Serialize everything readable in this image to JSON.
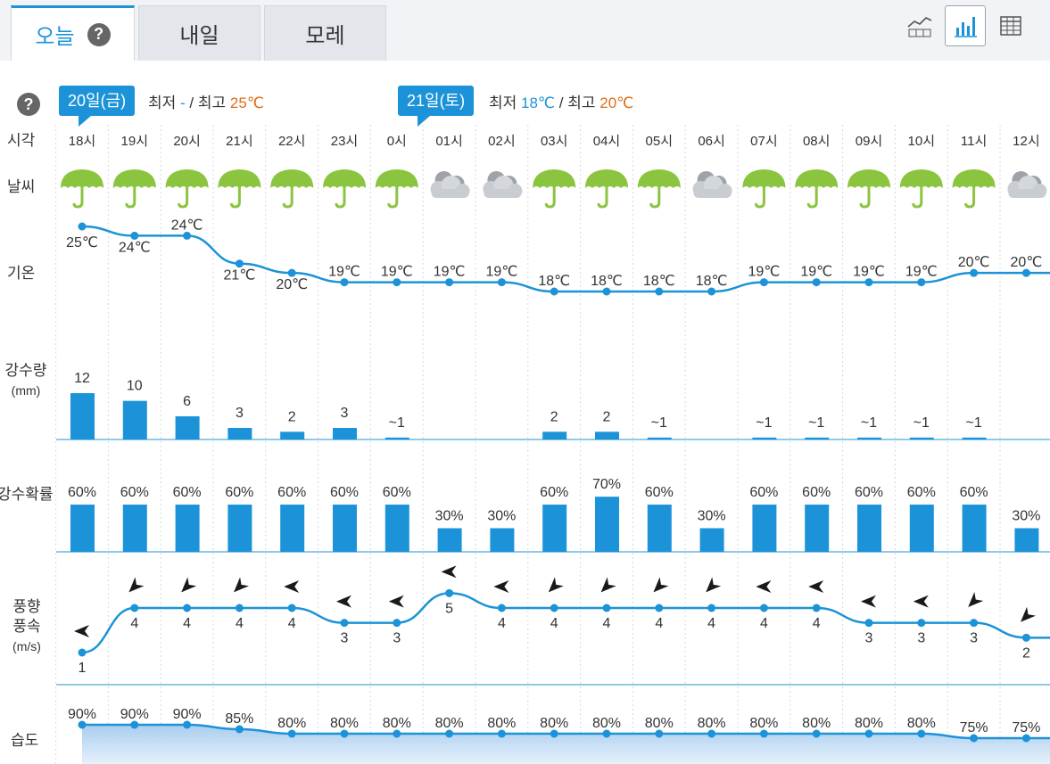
{
  "tabs": [
    {
      "label": "오늘",
      "active": true,
      "help": "?"
    },
    {
      "label": "내일",
      "active": false
    },
    {
      "label": "모레",
      "active": false
    }
  ],
  "view_buttons": [
    {
      "icon": "line-chart-numbers-icon",
      "active": false
    },
    {
      "icon": "bar-chart-icon",
      "active": true
    },
    {
      "icon": "table-grid-icon",
      "active": false
    }
  ],
  "help_icon": "?",
  "days": [
    {
      "badge": "20일(금)",
      "min_label": "최저",
      "min": "-",
      "sep": "/",
      "max_label": "최고",
      "max": "25℃"
    },
    {
      "badge": "21일(토)",
      "min_label": "최저",
      "min": "18℃",
      "sep": "/",
      "max_label": "최고",
      "max": "20℃"
    }
  ],
  "row_labels": {
    "time": "시각",
    "weather": "날씨",
    "temp": "기온",
    "precip": "강수량",
    "precip_unit": "(mm)",
    "prob": "강수확률",
    "wind_line1": "풍향",
    "wind_line2": "풍속",
    "wind_unit": "(m/s)",
    "humidity": "습도"
  },
  "colors": {
    "accent": "#1c93d8",
    "umbrella": "#8bc43f",
    "cloud": "#b9bdc3",
    "max": "#e06c17"
  },
  "chart_data": {
    "type": "line",
    "x": [
      "18시",
      "19시",
      "20시",
      "21시",
      "22시",
      "23시",
      "0시",
      "01시",
      "02시",
      "03시",
      "04시",
      "05시",
      "06시",
      "07시",
      "08시",
      "09시",
      "10시",
      "11시",
      "12시"
    ],
    "weather": [
      "rain",
      "rain",
      "rain",
      "rain",
      "rain",
      "rain",
      "rain",
      "cloudy",
      "cloudy",
      "rain",
      "rain",
      "rain",
      "cloudy",
      "rain",
      "rain",
      "rain",
      "rain",
      "rain",
      "cloudy"
    ],
    "temperature": [
      25,
      24,
      24,
      21,
      20,
      19,
      19,
      19,
      19,
      18,
      18,
      18,
      18,
      19,
      19,
      19,
      19,
      20,
      20
    ],
    "temperature_labels": [
      "25℃",
      "24℃",
      "24℃",
      "21℃",
      "20℃",
      "19℃",
      "19℃",
      "19℃",
      "19℃",
      "18℃",
      "18℃",
      "18℃",
      "18℃",
      "19℃",
      "19℃",
      "19℃",
      "19℃",
      "20℃",
      "20℃"
    ],
    "precipitation": [
      12,
      10,
      6,
      3,
      2,
      3,
      0.5,
      0,
      0,
      2,
      2,
      0.5,
      0,
      0.5,
      0.5,
      0.5,
      0.5,
      0.5,
      0
    ],
    "precipitation_labels": [
      "12",
      "10",
      "6",
      "3",
      "2",
      "3",
      "~1",
      "",
      "",
      "2",
      "2",
      "~1",
      "",
      "~1",
      "~1",
      "~1",
      "~1",
      "~1",
      ""
    ],
    "probability": [
      60,
      60,
      60,
      60,
      60,
      60,
      60,
      30,
      30,
      60,
      70,
      60,
      30,
      60,
      60,
      60,
      60,
      60,
      30
    ],
    "probability_labels": [
      "60%",
      "60%",
      "60%",
      "60%",
      "60%",
      "60%",
      "60%",
      "30%",
      "30%",
      "60%",
      "70%",
      "60%",
      "30%",
      "60%",
      "60%",
      "60%",
      "60%",
      "60%",
      "30%"
    ],
    "wind_speed": [
      1,
      4,
      4,
      4,
      4,
      3,
      3,
      5,
      4,
      4,
      4,
      4,
      4,
      4,
      4,
      3,
      3,
      3,
      2
    ],
    "wind_from_deg": [
      120,
      225,
      225,
      225,
      120,
      120,
      120,
      120,
      120,
      225,
      225,
      225,
      225,
      120,
      120,
      120,
      120,
      225,
      225
    ],
    "humidity": [
      90,
      90,
      90,
      85,
      80,
      80,
      80,
      80,
      80,
      80,
      80,
      80,
      80,
      80,
      80,
      80,
      80,
      75,
      75
    ],
    "humidity_labels": [
      "90%",
      "90%",
      "90%",
      "85%",
      "80%",
      "80%",
      "80%",
      "80%",
      "80%",
      "80%",
      "80%",
      "80%",
      "80%",
      "80%",
      "80%",
      "80%",
      "80%",
      "75%",
      "75%"
    ]
  }
}
